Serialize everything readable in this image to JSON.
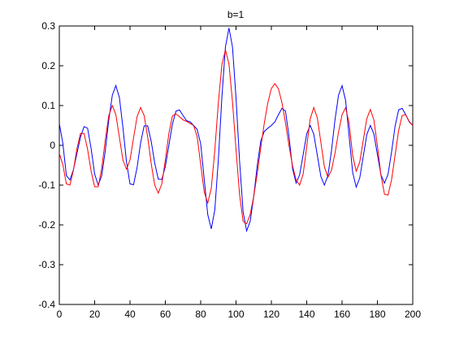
{
  "chart_data": {
    "type": "line",
    "title": "b=1",
    "x": [
      0,
      2,
      4,
      6,
      8,
      10,
      12,
      14,
      16,
      18,
      20,
      22,
      24,
      26,
      28,
      30,
      32,
      34,
      36,
      38,
      40,
      42,
      44,
      46,
      48,
      50,
      52,
      54,
      56,
      58,
      60,
      62,
      64,
      66,
      68,
      70,
      72,
      74,
      76,
      78,
      80,
      82,
      84,
      86,
      88,
      90,
      92,
      94,
      96,
      98,
      100,
      102,
      104,
      106,
      108,
      110,
      112,
      114,
      116,
      118,
      120,
      122,
      124,
      126,
      128,
      130,
      132,
      134,
      136,
      138,
      140,
      142,
      144,
      146,
      148,
      150,
      152,
      154,
      156,
      158,
      160,
      162,
      164,
      166,
      168,
      170,
      172,
      174,
      176,
      178,
      180,
      182,
      184,
      186,
      188,
      190,
      192,
      194,
      196,
      198,
      200
    ],
    "series": [
      {
        "color": "#0000ff",
        "values": [
          0.055,
          0.005,
          -0.076,
          -0.087,
          -0.061,
          -0.02,
          0.021,
          0.047,
          0.043,
          -0.008,
          -0.072,
          -0.1,
          -0.076,
          -0.014,
          0.064,
          0.126,
          0.15,
          0.12,
          0.045,
          -0.041,
          -0.097,
          -0.099,
          -0.056,
          0.006,
          0.049,
          0.049,
          0.01,
          -0.045,
          -0.085,
          -0.086,
          -0.053,
          0,
          0.053,
          0.086,
          0.089,
          0.075,
          0.062,
          0.059,
          0.05,
          0.04,
          0.004,
          -0.085,
          -0.174,
          -0.21,
          -0.162,
          -0.036,
          0.121,
          0.247,
          0.295,
          0.247,
          0.119,
          -0.039,
          -0.167,
          -0.215,
          -0.191,
          -0.129,
          -0.051,
          0.011,
          0.035,
          0.043,
          0.05,
          0.059,
          0.077,
          0.093,
          0.086,
          0.021,
          -0.059,
          -0.095,
          -0.074,
          -0.023,
          0.029,
          0.05,
          0.028,
          -0.025,
          -0.078,
          -0.1,
          -0.076,
          -0.014,
          0.064,
          0.126,
          0.15,
          0.113,
          0.023,
          -0.068,
          -0.105,
          -0.082,
          -0.028,
          0.027,
          0.05,
          0.029,
          -0.023,
          -0.074,
          -0.095,
          -0.073,
          -0.017,
          0.048,
          0.089,
          0.093,
          0.077,
          0.059,
          0.05
        ]
      },
      {
        "color": "#ff0000",
        "values": [
          -0.02,
          -0.049,
          -0.097,
          -0.1,
          -0.062,
          -0.008,
          0.03,
          0.03,
          -0.01,
          -0.065,
          -0.104,
          -0.104,
          -0.058,
          0.013,
          0.075,
          0.1,
          0.077,
          0.02,
          -0.037,
          -0.06,
          -0.037,
          0.018,
          0.072,
          0.095,
          0.075,
          0.021,
          -0.046,
          -0.1,
          -0.12,
          -0.097,
          -0.037,
          0.03,
          0.074,
          0.079,
          0.072,
          0.064,
          0.06,
          0.055,
          0.05,
          0.022,
          -0.048,
          -0.117,
          -0.145,
          -0.108,
          -0.012,
          0.107,
          0.203,
          0.24,
          0.205,
          0.109,
          -0.011,
          -0.124,
          -0.191,
          -0.197,
          -0.174,
          -0.129,
          -0.071,
          -0.006,
          0.056,
          0.107,
          0.143,
          0.155,
          0.142,
          0.107,
          0.056,
          -0.001,
          -0.052,
          -0.087,
          -0.1,
          -0.072,
          -0.003,
          0.067,
          0.095,
          0.069,
          0.008,
          -0.054,
          -0.08,
          -0.063,
          -0.02,
          0.033,
          0.077,
          0.095,
          0.055,
          -0.025,
          -0.065,
          -0.042,
          0.013,
          0.067,
          0.09,
          0.064,
          -0.001,
          -0.075,
          -0.123,
          -0.125,
          -0.087,
          -0.025,
          0.037,
          0.075,
          0.077,
          0.06,
          0.05
        ]
      }
    ],
    "xlim": [
      0,
      200
    ],
    "xticks": [
      0,
      20,
      40,
      60,
      80,
      100,
      120,
      140,
      160,
      180,
      200
    ],
    "ylim": [
      -0.4,
      0.3
    ],
    "yticks": [
      -0.4,
      -0.3,
      -0.2,
      -0.1,
      0,
      0.1,
      0.2,
      0.3
    ]
  }
}
